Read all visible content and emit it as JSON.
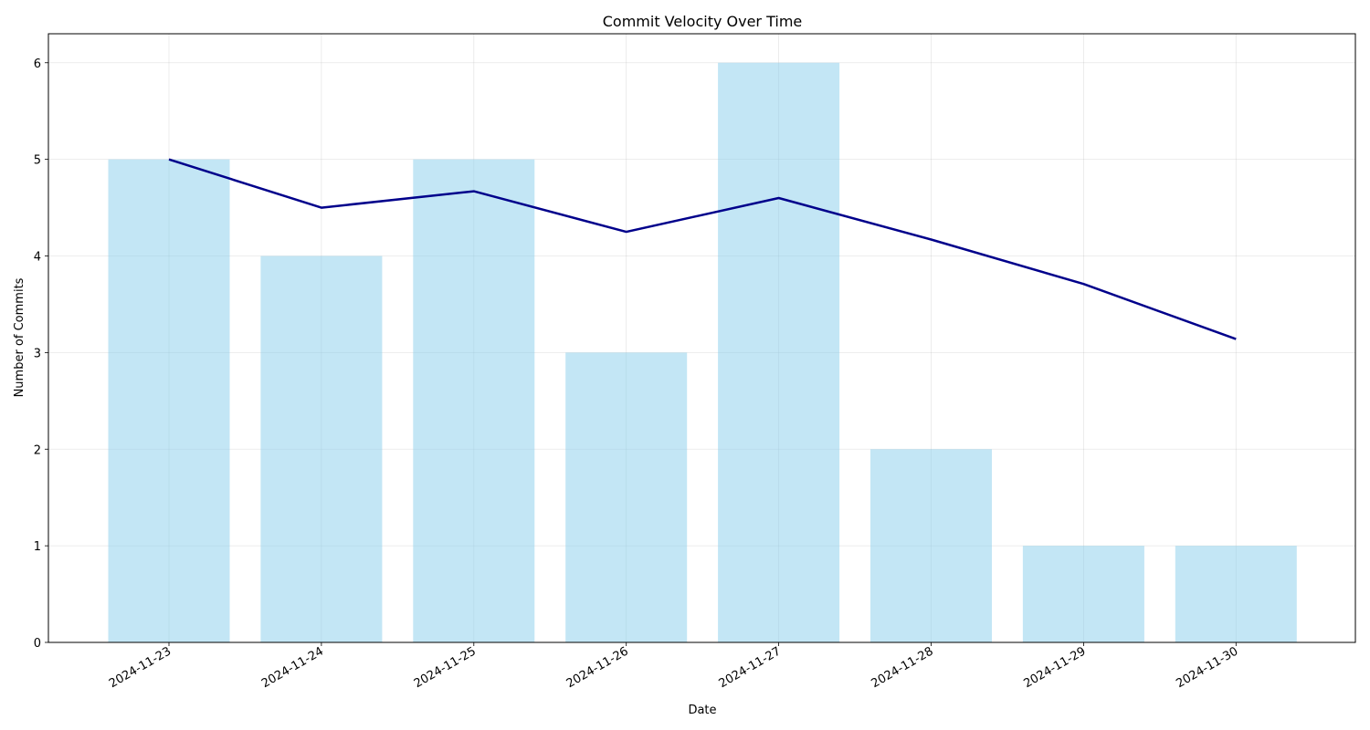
{
  "chart_data": {
    "type": "bar",
    "title": "Commit Velocity Over Time",
    "xlabel": "Date",
    "ylabel": "Number of Commits",
    "categories": [
      "2024-11-23",
      "2024-11-24",
      "2024-11-25",
      "2024-11-26",
      "2024-11-27",
      "2024-11-28",
      "2024-11-29",
      "2024-11-30"
    ],
    "series": [
      {
        "type": "bar",
        "values": [
          5,
          4,
          5,
          3,
          6,
          2,
          1,
          1
        ],
        "color": "#87ceeb"
      },
      {
        "type": "line",
        "values": [
          5.0,
          4.5,
          4.67,
          4.25,
          4.6,
          4.17,
          3.71,
          3.14
        ],
        "color": "#00008b"
      }
    ],
    "ylim": [
      0,
      6.3
    ],
    "yticks": [
      0,
      1,
      2,
      3,
      4,
      5,
      6
    ],
    "grid": true,
    "legend": "none"
  }
}
